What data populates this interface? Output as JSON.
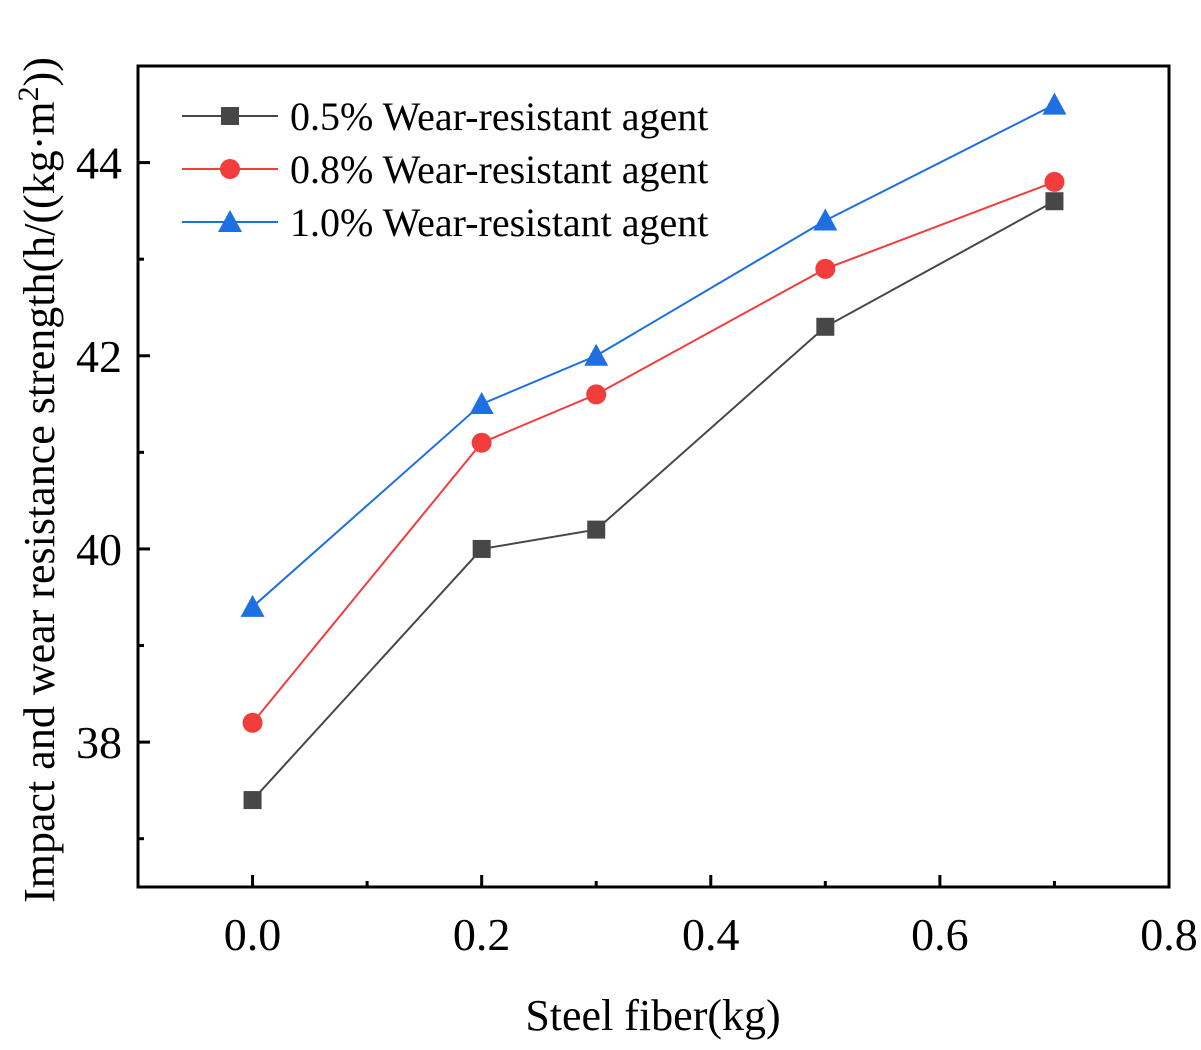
{
  "chart_data": {
    "type": "line",
    "title": "",
    "xlabel": "Steel fiber(kg)",
    "ylabel": "Impact and wear resistance strength(h/((kg·m",
    "ylabel_sup": "2",
    "ylabel_tail": "))",
    "xlim": [
      -0.1,
      0.8
    ],
    "ylim": [
      36.5,
      45
    ],
    "x_ticks": [
      0.0,
      0.2,
      0.4,
      0.6,
      0.8
    ],
    "x_tick_labels": [
      "0.0",
      "0.2",
      "0.4",
      "0.6",
      "0.8"
    ],
    "x_minor_ticks": [
      -0.1,
      0.1,
      0.3,
      0.5,
      0.7
    ],
    "y_ticks": [
      38,
      40,
      42,
      44
    ],
    "y_tick_labels": [
      "38",
      "40",
      "42",
      "44"
    ],
    "y_minor_ticks": [
      37,
      39,
      41,
      43
    ],
    "x": [
      0.0,
      0.2,
      0.3,
      0.5,
      0.7
    ],
    "series": [
      {
        "name": "0.5% Wear-resistant agent",
        "marker": "square",
        "color": "#474747",
        "values": [
          37.4,
          40.0,
          40.2,
          42.3,
          43.6
        ]
      },
      {
        "name": "0.8% Wear-resistant agent",
        "marker": "circle",
        "color": "#f23d3d",
        "values": [
          38.2,
          41.1,
          41.6,
          42.9,
          43.8
        ]
      },
      {
        "name": "1.0% Wear-resistant agent",
        "marker": "triangle",
        "color": "#1e6fe0",
        "values": [
          39.4,
          41.5,
          42.0,
          43.4,
          44.6
        ]
      }
    ],
    "legend": "top-left",
    "grid": false
  }
}
